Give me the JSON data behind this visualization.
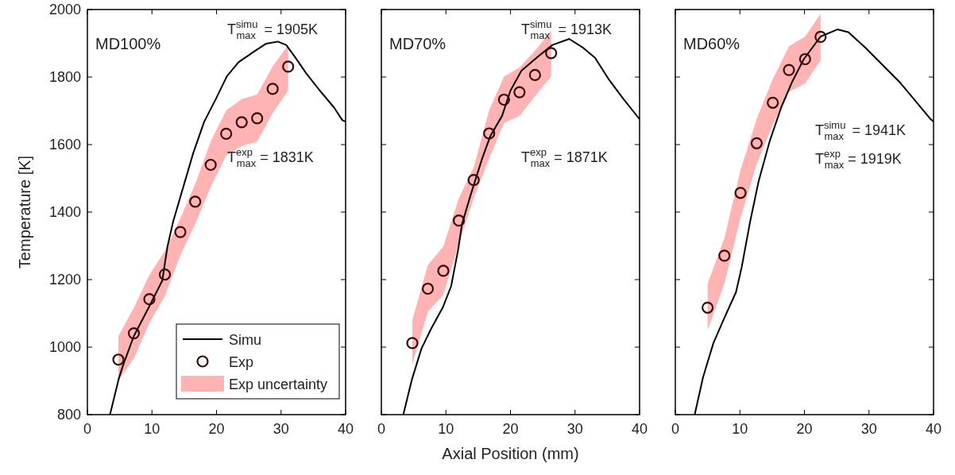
{
  "chart_data": [
    {
      "type": "line",
      "title": "MD100%",
      "ylabel": "Temperature [K]",
      "xlim": [
        0,
        40
      ],
      "xticks": [
        0,
        10,
        20,
        30,
        40
      ],
      "ylim": [
        800,
        2000
      ],
      "yticks": [
        800,
        1000,
        1200,
        1400,
        1600,
        1800,
        2000
      ],
      "legend": "bottom right",
      "grid": false,
      "annotations": [
        "T$^{simu}$$_{max}$ = 1905K",
        "T$^{exp}$$_{max}$ = 1831K",
        "Exp uncertainty"
      ],
      "series": [
        {
          "type": "line",
          "name": "Simu",
          "color": "#000000",
          "marker": "none",
          "line_style": "solid",
          "x": [
            3.5,
            4.8,
            5.5,
            7.2,
            9.6,
            11.6,
            12.4,
            13.3,
            14.6,
            16.4,
            18.1,
            19.9,
            21.6,
            23.4,
            26,
            27.7,
            29.5,
            30.8,
            32.1,
            33.9,
            36,
            38.2,
            39.5,
            40
          ],
          "values": [
            800,
            902,
            945,
            1033,
            1121,
            1197,
            1298,
            1373,
            1458,
            1575,
            1668,
            1735,
            1802,
            1844,
            1878,
            1899,
            1905,
            1895,
            1861,
            1811,
            1760,
            1710,
            1672,
            1668
          ]
        },
        {
          "type": "scatter",
          "name": "Exp",
          "color": "#3a0a0a",
          "marker": "circle",
          "x": [
            4.8,
            7.2,
            9.6,
            12.0,
            14.4,
            16.7,
            19.1,
            21.5,
            23.9,
            26.3,
            28.7,
            31.1
          ],
          "values": [
            963,
            1041,
            1142,
            1215,
            1341,
            1431,
            1540,
            1632,
            1666,
            1678,
            1765,
            1831
          ],
          "lower": [
            902,
            966,
            1071,
            1151,
            1272,
            1365,
            1474,
            1567,
            1596,
            1609,
            1693,
            1760
          ],
          "upper": [
            1033,
            1117,
            1214,
            1285,
            1382,
            1483,
            1609,
            1701,
            1735,
            1748,
            1832,
            1895
          ]
        }
      ]
    },
    {
      "type": "line",
      "title": "MD70%",
      "xlabel": "Axial Position (mm)",
      "xlim": [
        0,
        40
      ],
      "xticks": [
        0,
        10,
        20,
        30,
        40
      ],
      "ylim": [
        800,
        2000
      ],
      "yticks": [
        800,
        1000,
        1200,
        1400,
        1600,
        1800,
        2000
      ],
      "tick_labels": "x",
      "grid": false,
      "annotations": [
        "T$^{simu}$$_{max}$ = 1913K",
        "T$^{exp}$$_{max}$ = 1871K"
      ],
      "series": [
        {
          "type": "line",
          "color": "#000000",
          "marker": "none",
          "line_style": "solid",
          "x": [
            3.4,
            4.7,
            6.2,
            7.7,
            9.5,
            10.8,
            11.9,
            12.5,
            13.8,
            15.6,
            16.9,
            18.7,
            20,
            21.7,
            24.3,
            26.5,
            29.1,
            31.3,
            33.1,
            35.2,
            37.5,
            39.8,
            40
          ],
          "values": [
            800,
            902,
            995,
            1054,
            1117,
            1180,
            1289,
            1365,
            1449,
            1558,
            1626,
            1685,
            1760,
            1819,
            1861,
            1895,
            1913,
            1886,
            1857,
            1794,
            1735,
            1680,
            1676
          ]
        },
        {
          "type": "scatter",
          "color": "#3a0a0a",
          "marker": "circle",
          "x": [
            4.8,
            7.2,
            9.6,
            12.0,
            14.3,
            16.7,
            19.0,
            21.4,
            23.8,
            26.3
          ],
          "values": [
            1012,
            1173,
            1226,
            1375,
            1495,
            1633,
            1733,
            1755,
            1806,
            1871
          ],
          "lower": [
            949,
            1104,
            1155,
            1306,
            1441,
            1559,
            1664,
            1685,
            1743,
            1802
          ],
          "upper": [
            1080,
            1243,
            1298,
            1441,
            1533,
            1701,
            1802,
            1828,
            1878,
            1937
          ]
        }
      ]
    },
    {
      "type": "line",
      "title": "MD60%",
      "xlim": [
        0,
        40
      ],
      "xticks": [
        0,
        10,
        20,
        30,
        40
      ],
      "ylim": [
        800,
        2000
      ],
      "yticks": [
        800,
        1000,
        1200,
        1400,
        1600,
        1800,
        2000
      ],
      "tick_labels": "x",
      "grid": false,
      "annotations": [
        "T$^{simu}$$_{max}$ = 1941K",
        "T$^{exp}$$_{max}$ = 1919K"
      ],
      "series": [
        {
          "type": "line",
          "color": "#000000",
          "marker": "none",
          "line_style": "solid",
          "x": [
            3.0,
            4.3,
            5.9,
            7.6,
            9.4,
            10.3,
            11.6,
            12.9,
            14.6,
            16.4,
            18.1,
            19.9,
            22.5,
            25.1,
            26.8,
            29.5,
            32.1,
            34.7,
            37.3,
            39.5,
            40
          ],
          "values": [
            800,
            911,
            1012,
            1087,
            1163,
            1239,
            1373,
            1491,
            1609,
            1710,
            1786,
            1853,
            1920,
            1941,
            1933,
            1886,
            1836,
            1786,
            1727,
            1676,
            1668
          ]
        },
        {
          "type": "scatter",
          "color": "#3a0a0a",
          "marker": "circle",
          "x": [
            5.0,
            7.6,
            10.1,
            12.6,
            15.1,
            17.6,
            20.1,
            22.5
          ],
          "values": [
            1117,
            1271,
            1457,
            1604,
            1724,
            1821,
            1853,
            1919
          ],
          "lower": [
            1050,
            1188,
            1382,
            1542,
            1659,
            1756,
            1781,
            1849
          ],
          "upper": [
            1188,
            1323,
            1525,
            1676,
            1794,
            1891,
            1920,
            1987
          ]
        }
      ]
    }
  ]
}
